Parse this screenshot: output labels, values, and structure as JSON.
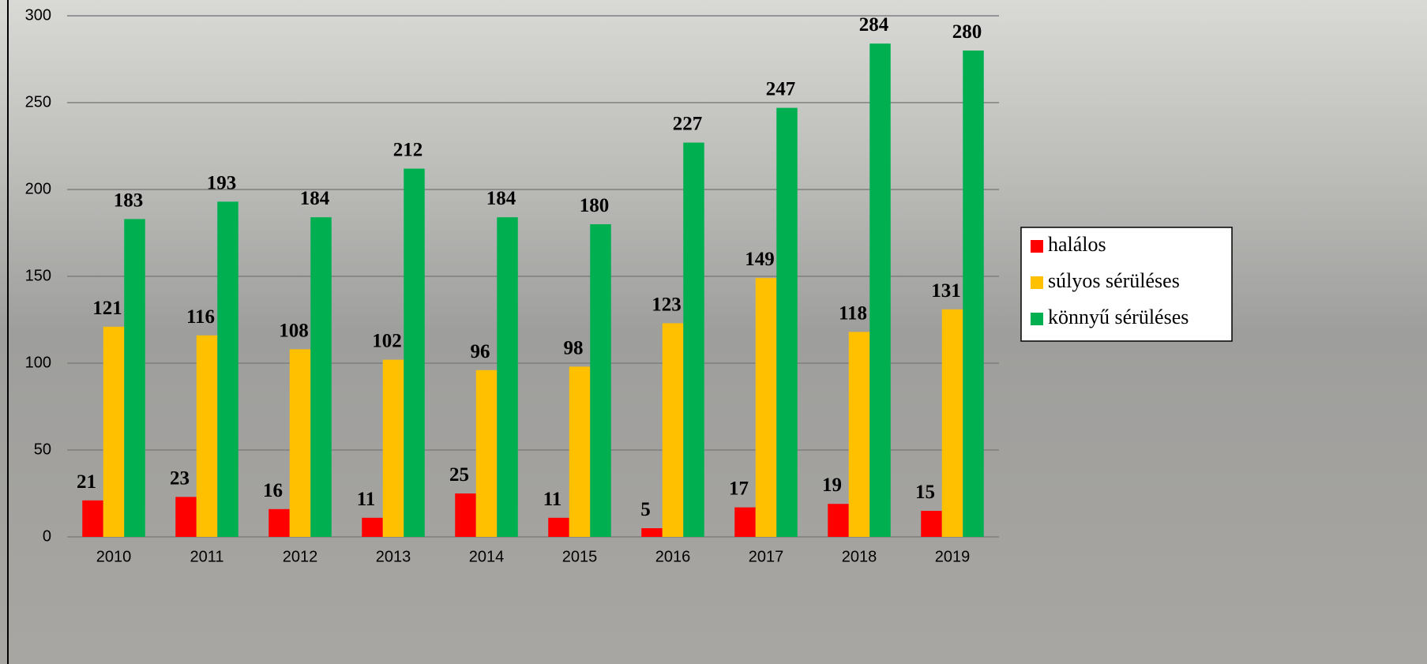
{
  "chart_data": {
    "type": "bar",
    "categories": [
      "2010",
      "2011",
      "2012",
      "2013",
      "2014",
      "2015",
      "2016",
      "2017",
      "2018",
      "2019"
    ],
    "series": [
      {
        "name": "halálos",
        "color": "#ff0000",
        "values": [
          21,
          23,
          16,
          11,
          25,
          11,
          5,
          17,
          19,
          15
        ]
      },
      {
        "name": "súlyos sérüléses",
        "color": "#ffc000",
        "values": [
          121,
          116,
          108,
          102,
          96,
          98,
          123,
          149,
          118,
          131
        ]
      },
      {
        "name": "könnyű sérüléses",
        "color": "#00b050",
        "values": [
          183,
          193,
          184,
          212,
          184,
          180,
          227,
          247,
          284,
          280
        ]
      }
    ],
    "ylim": [
      0,
      300
    ],
    "yticks": [
      0,
      50,
      100,
      150,
      200,
      250,
      300
    ],
    "grid": true,
    "legend": "right"
  }
}
